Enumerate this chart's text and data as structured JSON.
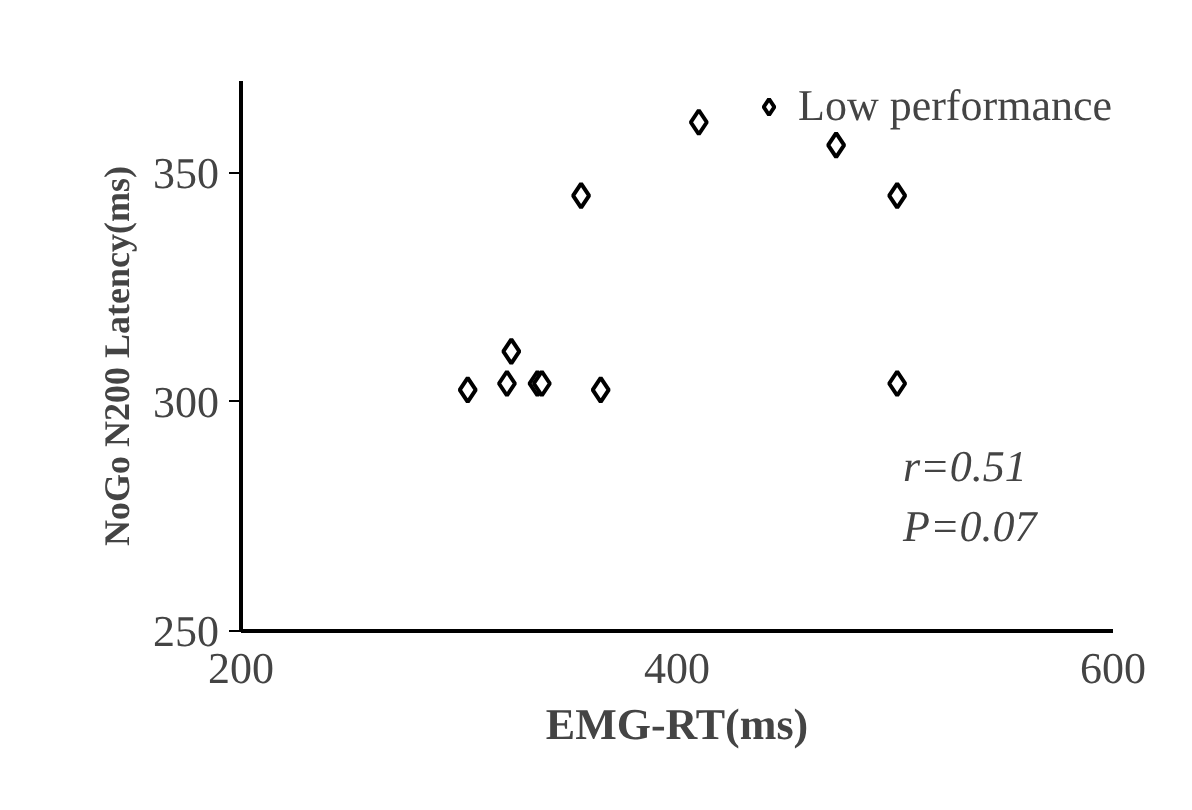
{
  "chart_data": {
    "type": "scatter",
    "xlabel": "EMG-RT(ms)",
    "ylabel": "NoGo N200 Latency(ms)",
    "xlim": [
      200,
      600
    ],
    "xticks": [
      200,
      400,
      600
    ],
    "ylim": [
      250,
      370
    ],
    "yticks": [
      250,
      300,
      350
    ],
    "grid": false,
    "legend": "top right",
    "marker": "diamond",
    "annotations": [
      "r=0.51",
      "P=0.07"
    ],
    "series": [
      {
        "name": "Low performance",
        "color": "#000000",
        "x": [
          304,
          322,
          324,
          336,
          338,
          365,
          356,
          410,
          473,
          501,
          501
        ],
        "values": [
          302.6,
          304,
          311,
          304,
          304,
          302.6,
          345,
          361,
          356,
          345,
          304
        ]
      }
    ]
  }
}
